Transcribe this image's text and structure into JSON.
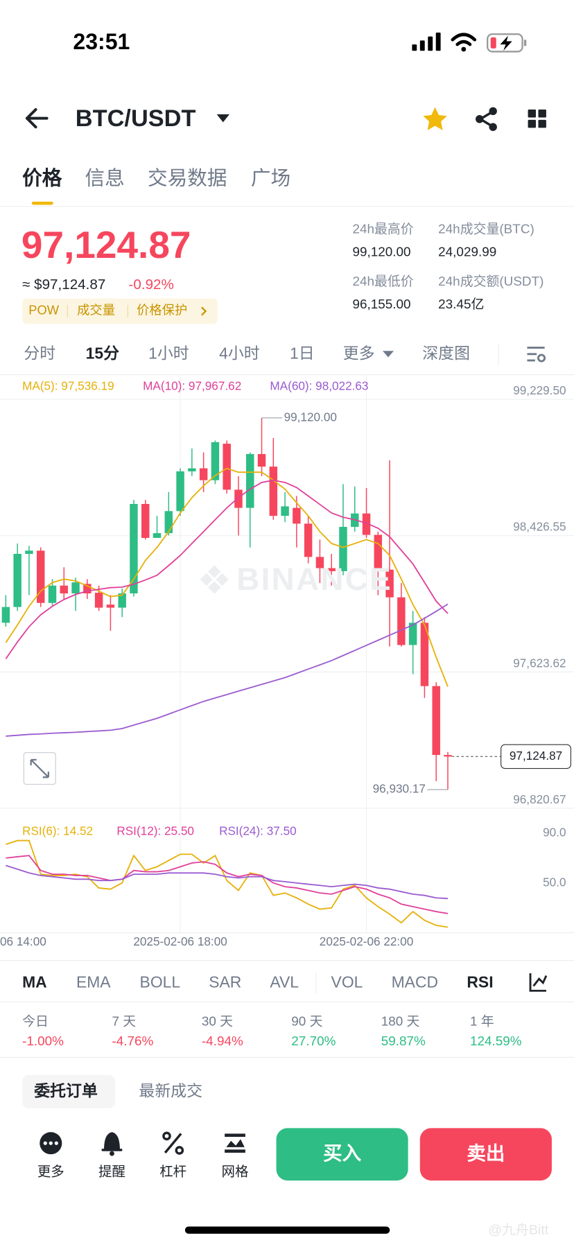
{
  "status_bar": {
    "time": "23:51"
  },
  "header": {
    "pair": "BTC/USDT"
  },
  "tabs": [
    "价格",
    "信息",
    "交易数据",
    "广场"
  ],
  "price": {
    "last": "97,124.87",
    "usd": "≈ $97,124.87",
    "change": "-0.92%",
    "tags": [
      "POW",
      "成交量",
      "价格保护"
    ]
  },
  "stats": [
    {
      "label": "24h最高价",
      "value": "99,120.00"
    },
    {
      "label": "24h成交量(BTC)",
      "value": "24,029.99"
    },
    {
      "label": "24h最低价",
      "value": "96,155.00"
    },
    {
      "label": "24h成交额(USDT)",
      "value": "23.45亿"
    }
  ],
  "intervals": [
    "分时",
    "15分",
    "1小时",
    "4小时",
    "1日",
    "更多",
    "深度图"
  ],
  "watermark": "BINANCE",
  "chart_data": [
    {
      "type": "candlestick",
      "up_color": "#2ebd85",
      "down_color": "#f6465d",
      "xlim": [
        -0.5,
        42.5
      ],
      "ylim": [
        96820.67,
        99229.5
      ],
      "yticks": [
        {
          "value": 99229.5,
          "label": "99,229.50"
        },
        {
          "value": 98426.55,
          "label": "98,426.55"
        },
        {
          "value": 97623.62,
          "label": "97,623.62"
        },
        {
          "value": 96820.67,
          "label": "96,820.67"
        }
      ],
      "grid": true,
      "open": [
        97913,
        98006,
        98319,
        98338,
        98030,
        98132,
        98086,
        98142,
        98090,
        98020,
        98002,
        98086,
        98613,
        98413,
        98441,
        98571,
        98805,
        98823,
        98753,
        98968,
        98697,
        98590,
        98907,
        98833,
        98543,
        98590,
        98497,
        98301,
        98235,
        98217,
        98478,
        98557,
        98431,
        98226,
        98063,
        97782,
        97913,
        97540,
        97134
      ],
      "high": [
        98076,
        98380,
        98366,
        98357,
        98170,
        98240,
        98179,
        98170,
        98132,
        98076,
        98114,
        98637,
        98637,
        98543,
        98683,
        98823,
        98940,
        98917,
        98987,
        98987,
        98777,
        98917,
        99120,
        99001,
        98683,
        98660,
        98543,
        98403,
        98319,
        98730,
        98716,
        98707,
        98450,
        98870,
        98147,
        97983,
        97946,
        97563,
        97152
      ],
      "low": [
        97890,
        97983,
        98076,
        98006,
        98006,
        98053,
        97983,
        98053,
        97983,
        97866,
        97946,
        98067,
        98403,
        98413,
        98427,
        98543,
        98777,
        98683,
        98730,
        98674,
        98427,
        98357,
        98777,
        98520,
        98506,
        98357,
        98263,
        98147,
        98132,
        98193,
        98450,
        98413,
        98076,
        97773,
        97773,
        97610,
        97470,
        96980,
        96930.17
      ],
      "close": [
        98006,
        98319,
        98338,
        98030,
        98132,
        98086,
        98151,
        98086,
        98002,
        98002,
        98086,
        98613,
        98413,
        98441,
        98571,
        98805,
        98823,
        98753,
        98977,
        98697,
        98590,
        98907,
        98833,
        98543,
        98599,
        98497,
        98301,
        98235,
        98217,
        98478,
        98557,
        98431,
        98226,
        98063,
        97782,
        97913,
        97540,
        97134,
        97124.87
      ],
      "series": [
        {
          "name": "MA(5): 97,536.19",
          "color": "#e6b10a",
          "values": [
            97796,
            97900,
            98010,
            98100,
            98150,
            98170,
            98160,
            98130,
            98100,
            98067,
            98076,
            98170,
            98280,
            98357,
            98450,
            98560,
            98650,
            98720,
            98780,
            98823,
            98800,
            98800,
            98800,
            98753,
            98700,
            98620,
            98543,
            98450,
            98380,
            98357,
            98380,
            98403,
            98380,
            98310,
            98170,
            98020,
            97900,
            97710,
            97536.19
          ]
        },
        {
          "name": "MA(10): 97,967.62",
          "color": "#e0409a",
          "values": [
            97700,
            97800,
            97890,
            97960,
            98010,
            98050,
            98080,
            98100,
            98110,
            98120,
            98123,
            98140,
            98165,
            98193,
            98250,
            98310,
            98380,
            98450,
            98520,
            98590,
            98650,
            98700,
            98740,
            98753,
            98740,
            98710,
            98660,
            98610,
            98560,
            98535,
            98520,
            98500,
            98470,
            98420,
            98340,
            98260,
            98150,
            98040,
            97967.62
          ]
        },
        {
          "name": "MA(60): 98,022.63",
          "color": "#9a5bd0",
          "values": [
            97245,
            97250,
            97255,
            97258,
            97262,
            97265,
            97268,
            97272,
            97276,
            97280,
            97290,
            97310,
            97330,
            97350,
            97375,
            97400,
            97425,
            97450,
            97470,
            97490,
            97510,
            97530,
            97550,
            97570,
            97590,
            97615,
            97640,
            97665,
            97690,
            97720,
            97750,
            97780,
            97810,
            97840,
            97870,
            97900,
            97940,
            97980,
            98022.63
          ]
        }
      ],
      "annotations": [
        {
          "value": 99120.0,
          "label": "99,120.00"
        },
        {
          "value": 96930.17,
          "label": "96,930.17"
        }
      ],
      "last_price": {
        "value": 97124.87,
        "label": "97,124.87"
      }
    },
    {
      "type": "line",
      "xlim": [
        -0.5,
        42.5
      ],
      "ylim": [
        10,
        110
      ],
      "yticks": [
        {
          "value": 90,
          "label": "90.0"
        },
        {
          "value": 50,
          "label": "50.0"
        }
      ],
      "xticks": [
        {
          "value": -1,
          "label": "06 14:00"
        },
        {
          "value": 15,
          "label": "2025-02-06 18:00"
        },
        {
          "value": 31,
          "label": "2025-02-06 22:00"
        }
      ],
      "series": [
        {
          "name": "RSI(6): 14.52",
          "color": "#e6b10a",
          "values": [
            81,
            84,
            84,
            57,
            56,
            56,
            57,
            55,
            46,
            45,
            50,
            72,
            60,
            63,
            68,
            73,
            73,
            66,
            72,
            52,
            44,
            58,
            56,
            40,
            42,
            38,
            33,
            29,
            30,
            45,
            48,
            38,
            31,
            25,
            18,
            27,
            20,
            16,
            14.52
          ]
        },
        {
          "name": "RSI(12): 25.50",
          "color": "#e0409a",
          "values": [
            70,
            71,
            72,
            60,
            57,
            57,
            56,
            56,
            54,
            52,
            53,
            60,
            59,
            59,
            60,
            63,
            66,
            67,
            65,
            58,
            55,
            57,
            56,
            50,
            47,
            46,
            44,
            42,
            41,
            44,
            47,
            45,
            41,
            38,
            33,
            31,
            29,
            27,
            25.5
          ]
        },
        {
          "name": "RSI(24): 37.50",
          "color": "#9a5bd0",
          "values": [
            64,
            61,
            58,
            56,
            55,
            54,
            53,
            53,
            52,
            52,
            53,
            57,
            57,
            57,
            58,
            58,
            58,
            58,
            57,
            55,
            54,
            55,
            55,
            52,
            51,
            50,
            49,
            48,
            47,
            48,
            49,
            48,
            46,
            45,
            43,
            41,
            40,
            38,
            37.5
          ]
        }
      ]
    }
  ],
  "indicators": [
    "MA",
    "EMA",
    "BOLL",
    "SAR",
    "AVL",
    "VOL",
    "MACD",
    "RSI"
  ],
  "performance": [
    {
      "period": "今日",
      "change": "-1.00%"
    },
    {
      "period": "7 天",
      "change": "-4.76%"
    },
    {
      "period": "30 天",
      "change": "-4.94%"
    },
    {
      "period": "90 天",
      "change": "27.70%"
    },
    {
      "period": "180 天",
      "change": "59.87%"
    },
    {
      "period": "1 年",
      "change": "124.59%"
    }
  ],
  "order_tabs": [
    "委托订单",
    "最新成交"
  ],
  "actions": [
    "更多",
    "提醒",
    "杠杆",
    "网格"
  ],
  "buy": "买入",
  "sell": "卖出",
  "footer_watermark": "@九舟Bitt"
}
